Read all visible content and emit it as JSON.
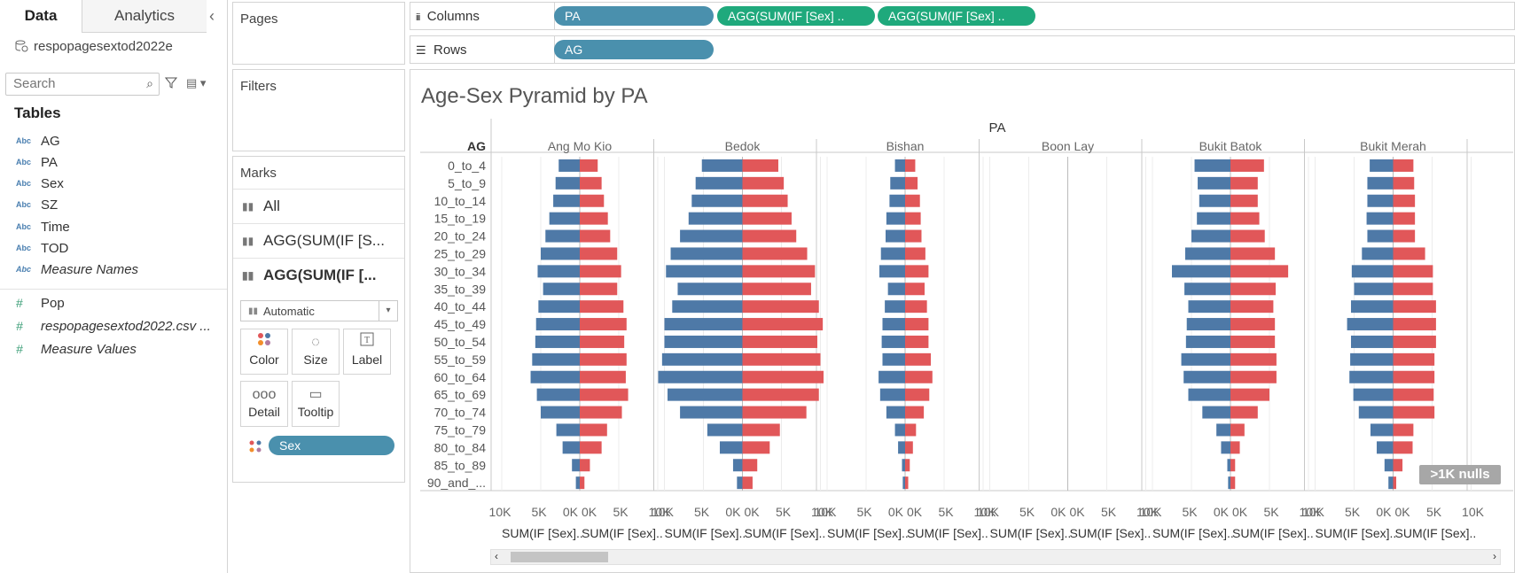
{
  "datapane": {
    "tab_data": "Data",
    "tab_analytics": "Analytics",
    "datasource": "respopagesextod2022e",
    "search_placeholder": "Search",
    "tables_heading": "Tables",
    "dimensions": [
      "AG",
      "PA",
      "Sex",
      "SZ",
      "Time",
      "TOD",
      "Measure Names"
    ],
    "measures": [
      "Pop",
      "respopagesextod2022.csv ...",
      "Measure Values"
    ]
  },
  "cards": {
    "pages": "Pages",
    "filters": "Filters",
    "marks": "Marks",
    "mark_rows": [
      "All",
      "AGG(SUM(IF [S...",
      "AGG(SUM(IF [..."
    ],
    "mark_type": "Automatic",
    "buttons": [
      "Color",
      "Size",
      "Label",
      "Detail",
      "Tooltip"
    ],
    "color_pill": "Sex"
  },
  "shelves": {
    "columns_label": "Columns",
    "rows_label": "Rows",
    "column_pills": [
      "PA",
      "AGG(SUM(IF [Sex] ..",
      "AGG(SUM(IF [Sex] .."
    ],
    "row_pills": [
      "AG"
    ]
  },
  "view": {
    "title": "Age-Sex Pyramid by PA",
    "nulls_badge": ">1K nulls"
  },
  "colors": {
    "male": "#4e79a7",
    "female": "#e15759",
    "pill_blue": "#4a90ad",
    "pill_green": "#1fa97c"
  },
  "chart_data": {
    "type": "bar",
    "orientation": "horizontal-diverging",
    "column_header": "PA",
    "row_header": "AG",
    "categories": [
      "0_to_4",
      "5_to_9",
      "10_to_14",
      "15_to_19",
      "20_to_24",
      "25_to_29",
      "30_to_34",
      "35_to_39",
      "40_to_44",
      "45_to_49",
      "50_to_54",
      "55_to_59",
      "60_to_64",
      "65_to_69",
      "70_to_74",
      "75_to_79",
      "80_to_84",
      "85_to_89",
      "90_and_..."
    ],
    "xlabel_left": "SUM(IF [Sex]..",
    "xlabel_right": "SUM(IF [Sex]..",
    "xlim": [
      0,
      10000
    ],
    "tick_labels_left": [
      "10K",
      "5K",
      "0K"
    ],
    "tick_labels_right": [
      "0K",
      "5K",
      "10K"
    ],
    "panels": [
      {
        "name": "Ang Mo Kio",
        "series": [
          {
            "values": [
              2700,
              3100,
              3400,
              3900,
              4400,
              5000,
              5400,
              4700,
              5300,
              5600,
              5700,
              6100,
              6300,
              5500,
              5000,
              3000,
              2200,
              1000,
              500
            ]
          },
          {
            "values": [
              2300,
              2800,
              3100,
              3600,
              3900,
              4800,
              5300,
              4800,
              5600,
              6000,
              5700,
              6000,
              5900,
              6200,
              5400,
              3500,
              2800,
              1300,
              600
            ]
          }
        ]
      },
      {
        "name": "Bedok",
        "series": [
          {
            "values": [
              5200,
              6000,
              6500,
              6900,
              8000,
              9200,
              9800,
              8300,
              9000,
              10000,
              10000,
              10300,
              10800,
              9600,
              8000,
              4500,
              2900,
              1200,
              700
            ]
          },
          {
            "values": [
              4600,
              5300,
              5800,
              6300,
              6900,
              8300,
              9300,
              8800,
              9800,
              10300,
              9600,
              10000,
              10400,
              9800,
              8200,
              4800,
              3500,
              1900,
              1300
            ]
          }
        ]
      },
      {
        "name": "Bishan",
        "series": [
          {
            "values": [
              1300,
              1900,
              2000,
              2400,
              2500,
              3100,
              3300,
              2200,
              2600,
              2900,
              3000,
              2900,
              3400,
              3200,
              2400,
              1300,
              900,
              400,
              300
            ]
          },
          {
            "values": [
              1300,
              1600,
              1900,
              2000,
              2100,
              2600,
              3000,
              2500,
              2800,
              3000,
              3000,
              3300,
              3500,
              3100,
              2400,
              1400,
              1000,
              600,
              400
            ]
          }
        ]
      },
      {
        "name": "Boon Lay",
        "series": [
          {
            "values": [
              0,
              0,
              0,
              0,
              0,
              0,
              0,
              0,
              0,
              0,
              0,
              0,
              0,
              0,
              0,
              0,
              0,
              0,
              0
            ]
          },
          {
            "values": [
              0,
              0,
              0,
              0,
              0,
              0,
              0,
              0,
              0,
              0,
              0,
              0,
              0,
              0,
              0,
              0,
              0,
              0,
              0
            ]
          }
        ]
      },
      {
        "name": "Bukit Batok",
        "series": [
          {
            "values": [
              4600,
              4200,
              4000,
              4300,
              5000,
              5800,
              7500,
              5900,
              5400,
              5600,
              5700,
              6300,
              6000,
              5400,
              3600,
              1800,
              1200,
              400,
              300
            ]
          },
          {
            "values": [
              4300,
              3500,
              3500,
              3700,
              4400,
              5700,
              7400,
              5800,
              5500,
              5700,
              5700,
              5900,
              5900,
              5000,
              3500,
              1800,
              1200,
              600,
              600
            ]
          }
        ]
      },
      {
        "name": "Bukit Merah",
        "series": [
          {
            "values": [
              3000,
              3300,
              3300,
              3400,
              3300,
              4000,
              5300,
              5000,
              5400,
              5900,
              5400,
              5500,
              5600,
              5100,
              4400,
              2900,
              2100,
              1100,
              600
            ]
          },
          {
            "values": [
              2600,
              2700,
              2800,
              2800,
              2800,
              4100,
              5100,
              5100,
              5500,
              5500,
              5500,
              5300,
              5300,
              5200,
              5300,
              2600,
              2500,
              1200,
              400
            ]
          }
        ]
      }
    ]
  }
}
